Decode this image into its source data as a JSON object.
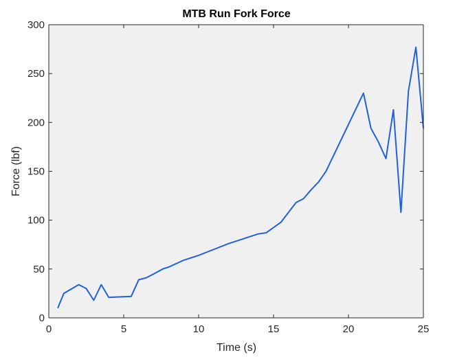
{
  "chart_data": {
    "type": "line",
    "title": "MTB Run Fork Force",
    "xlabel": "Time (s)",
    "ylabel": "Force (lbf)",
    "xlim": [
      0,
      25
    ],
    "ylim": [
      0,
      300
    ],
    "xticks": [
      0,
      5,
      10,
      15,
      20,
      25
    ],
    "yticks": [
      0,
      50,
      100,
      150,
      200,
      250,
      300
    ],
    "grid": false,
    "plot_background": "#f0f0f0",
    "line_color": "#1f5fe0",
    "series": [
      {
        "x": [
          0.6,
          1.0,
          2.0,
          2.5,
          3.0,
          3.5,
          4.0,
          5.5,
          6.0,
          6.5,
          7.0,
          7.6,
          8.0,
          9.0,
          10.0,
          11.0,
          12.0,
          13.0,
          14.0,
          14.5,
          15.5,
          16.5,
          17.0,
          17.5,
          18.0,
          18.5,
          21.0,
          21.5,
          22.0,
          22.5,
          23.0,
          23.5,
          24.0,
          24.5,
          25.0
        ],
        "y": [
          10,
          25,
          34,
          30,
          18,
          34,
          21,
          22,
          39,
          41,
          45,
          50,
          52,
          59,
          64,
          70,
          76,
          81,
          86,
          87,
          98,
          118,
          122,
          131,
          139,
          150,
          230,
          194,
          180,
          163,
          213,
          108,
          232,
          277,
          194
        ]
      }
    ]
  }
}
